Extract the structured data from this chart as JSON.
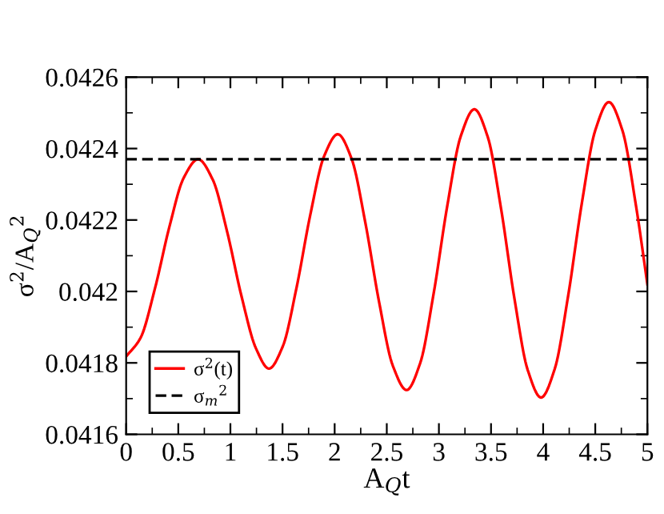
{
  "chart_data": {
    "type": "line",
    "xlabel": "A$_{Q}$t",
    "ylabel": "σ$^{2}$/A$_{Q}$$^{2}$",
    "xlim": [
      0,
      5
    ],
    "ylim": [
      0.0416,
      0.0426
    ],
    "xticks": [
      0,
      0.5,
      1,
      1.5,
      2,
      2.5,
      3,
      3.5,
      4,
      4.5,
      5
    ],
    "yticks": [
      0.0416,
      0.0418,
      0.042,
      0.0422,
      0.0424,
      0.0426
    ],
    "grid": false,
    "legend": "bottom left",
    "marker": "none",
    "series": [
      {
        "name": "σ$^{2}$(t)",
        "color": "#ff0000",
        "line_style": "solid",
        "x": [
          0,
          0.138,
          0.276,
          0.414,
          0.552,
          0.69,
          0.829,
          0.968,
          1.107,
          1.246,
          1.37,
          1.502,
          1.634,
          1.766,
          1.898,
          2.03,
          2.162,
          2.294,
          2.426,
          2.558,
          2.69,
          2.82,
          2.95,
          3.08,
          3.21,
          3.34,
          3.468,
          3.596,
          3.724,
          3.852,
          3.98,
          4.11,
          4.24,
          4.37,
          4.5,
          4.63,
          4.76,
          4.89,
          5.0
        ],
        "values": [
          0.041818,
          0.04187,
          0.042008,
          0.04218,
          0.042318,
          0.04237,
          0.042314,
          0.042168,
          0.041986,
          0.04184,
          0.041784,
          0.041846,
          0.04201,
          0.042214,
          0.042378,
          0.04244,
          0.042372,
          0.042193,
          0.041971,
          0.041792,
          0.041724,
          0.041799,
          0.041995,
          0.042239,
          0.042435,
          0.04251,
          0.042433,
          0.042232,
          0.041981,
          0.04178,
          0.041703,
          0.041782,
          0.041988,
          0.042245,
          0.042451,
          0.04253,
          0.042451,
          0.042241,
          0.04202
        ]
      },
      {
        "name": "σ$_{m}$$^{2}$",
        "color": "#000000",
        "line_style": "dashed",
        "x": [
          0,
          5
        ],
        "values": [
          0.04237,
          0.04237
        ]
      }
    ]
  }
}
